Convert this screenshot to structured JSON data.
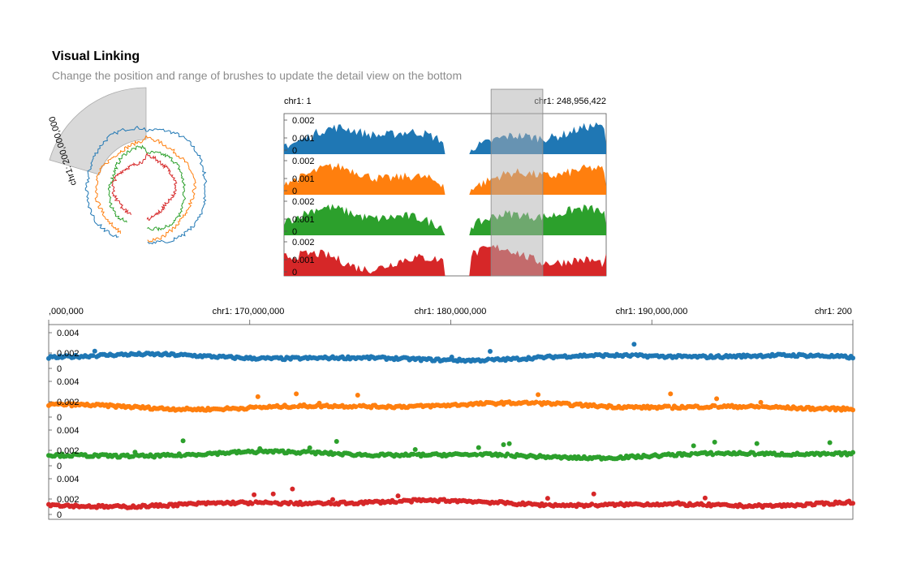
{
  "header": {
    "title": "Visual Linking",
    "subtitle": "Change the position and range of brushes to update the detail view on the bottom"
  },
  "colors": {
    "series": [
      "#1f77b4",
      "#ff7f0e",
      "#2ca02c",
      "#d62728"
    ],
    "brush": "#bdbdbd",
    "axis": "#555555"
  },
  "chart_data": [
    {
      "type": "line",
      "name": "circular-overview",
      "brush_label": "chr1: 200,000,000",
      "genome_range": [
        1,
        248956422
      ],
      "gap": [
        123400000,
        144000000
      ],
      "brush": [
        198000000,
        248956422
      ]
    },
    {
      "type": "area",
      "name": "linear-overview",
      "x_labels": [
        "chr1: 1",
        "chr1: 248,956,422"
      ],
      "xlim": [
        1,
        248956422
      ],
      "y_ticks": [
        "0.002",
        "0.001",
        "0"
      ],
      "ylim": [
        0,
        0.0025
      ],
      "gap": [
        123400000,
        144000000
      ],
      "brush": [
        160000000,
        200000000
      ],
      "tracks": 4
    },
    {
      "type": "scatter",
      "name": "detail-view",
      "x_labels": [
        ",000,000",
        "chr1: 170,000,000",
        "chr1: 180,000,000",
        "chr1: 190,000,000",
        "chr1: 200"
      ],
      "x_ticks": [
        160000000,
        170000000,
        180000000,
        190000000,
        200000000
      ],
      "xlim": [
        160000000,
        200000000
      ],
      "y_ticks": [
        "0.004",
        "0.002",
        "0"
      ],
      "ylim": [
        0,
        0.0045
      ],
      "tracks": 4
    }
  ]
}
